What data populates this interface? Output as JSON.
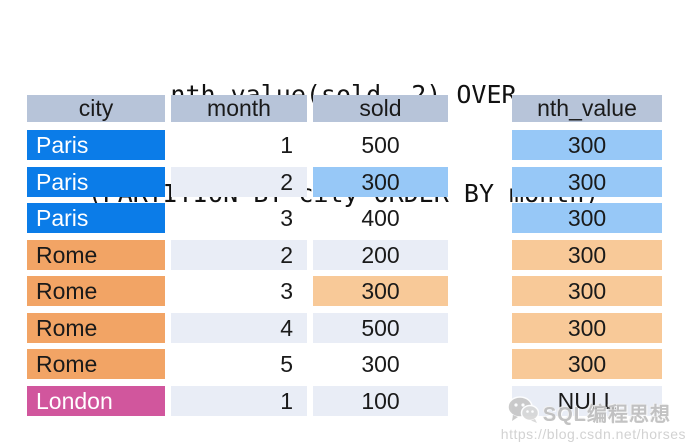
{
  "title": {
    "line1": "nth_value(sold, 2) OVER",
    "line2": "(PARTITION BY city ORDER BY month)"
  },
  "table": {
    "columns": [
      {
        "key": "city",
        "label": "city"
      },
      {
        "key": "month",
        "label": "month"
      },
      {
        "key": "sold",
        "label": "sold"
      },
      {
        "key": "nth_value",
        "label": "nth_value"
      }
    ],
    "rows": [
      {
        "city": "Paris",
        "month": "1",
        "sold": "500",
        "nth_value": "300",
        "city_bg": "paris_blue",
        "city_fg": "#ffffff",
        "month_bg": "none",
        "sold_bg": "none",
        "nth_bg": "highlight_blue"
      },
      {
        "city": "Paris",
        "month": "2",
        "sold": "300",
        "nth_value": "300",
        "city_bg": "paris_blue",
        "city_fg": "#ffffff",
        "month_bg": "row_alt",
        "sold_bg": "highlight_blue",
        "nth_bg": "highlight_blue"
      },
      {
        "city": "Paris",
        "month": "3",
        "sold": "400",
        "nth_value": "300",
        "city_bg": "paris_blue",
        "city_fg": "#ffffff",
        "month_bg": "none",
        "sold_bg": "none",
        "nth_bg": "highlight_blue"
      },
      {
        "city": "Rome",
        "month": "2",
        "sold": "200",
        "nth_value": "300",
        "city_bg": "rome_orange",
        "city_fg": "#1a1a1a",
        "month_bg": "row_alt",
        "sold_bg": "row_alt",
        "nth_bg": "highlight_orange"
      },
      {
        "city": "Rome",
        "month": "3",
        "sold": "300",
        "nth_value": "300",
        "city_bg": "rome_orange",
        "city_fg": "#1a1a1a",
        "month_bg": "none",
        "sold_bg": "highlight_orange",
        "nth_bg": "highlight_orange"
      },
      {
        "city": "Rome",
        "month": "4",
        "sold": "500",
        "nth_value": "300",
        "city_bg": "rome_orange",
        "city_fg": "#1a1a1a",
        "month_bg": "row_alt",
        "sold_bg": "row_alt",
        "nth_bg": "highlight_orange"
      },
      {
        "city": "Rome",
        "month": "5",
        "sold": "300",
        "nth_value": "300",
        "city_bg": "rome_orange",
        "city_fg": "#1a1a1a",
        "month_bg": "none",
        "sold_bg": "none",
        "nth_bg": "highlight_orange"
      },
      {
        "city": "London",
        "month": "1",
        "sold": "100",
        "nth_value": "NULL",
        "city_bg": "london_pink",
        "city_fg": "#ffffff",
        "month_bg": "row_alt",
        "sold_bg": "row_alt",
        "nth_bg": "row_alt"
      }
    ]
  },
  "colors": {
    "header_bg": "#b7c4d9",
    "paris_blue": "#0b7ce8",
    "rome_orange": "#f2a465",
    "london_pink": "#d1569d",
    "highlight_blue": "#97c8f7",
    "highlight_orange": "#f8c998",
    "row_alt": "#e9edf6",
    "text": "#1a1a1a"
  },
  "watermark": {
    "icon": "wechat-icon",
    "brand": "SQL编程思想",
    "url": "https://blog.csdn.net/horses"
  }
}
